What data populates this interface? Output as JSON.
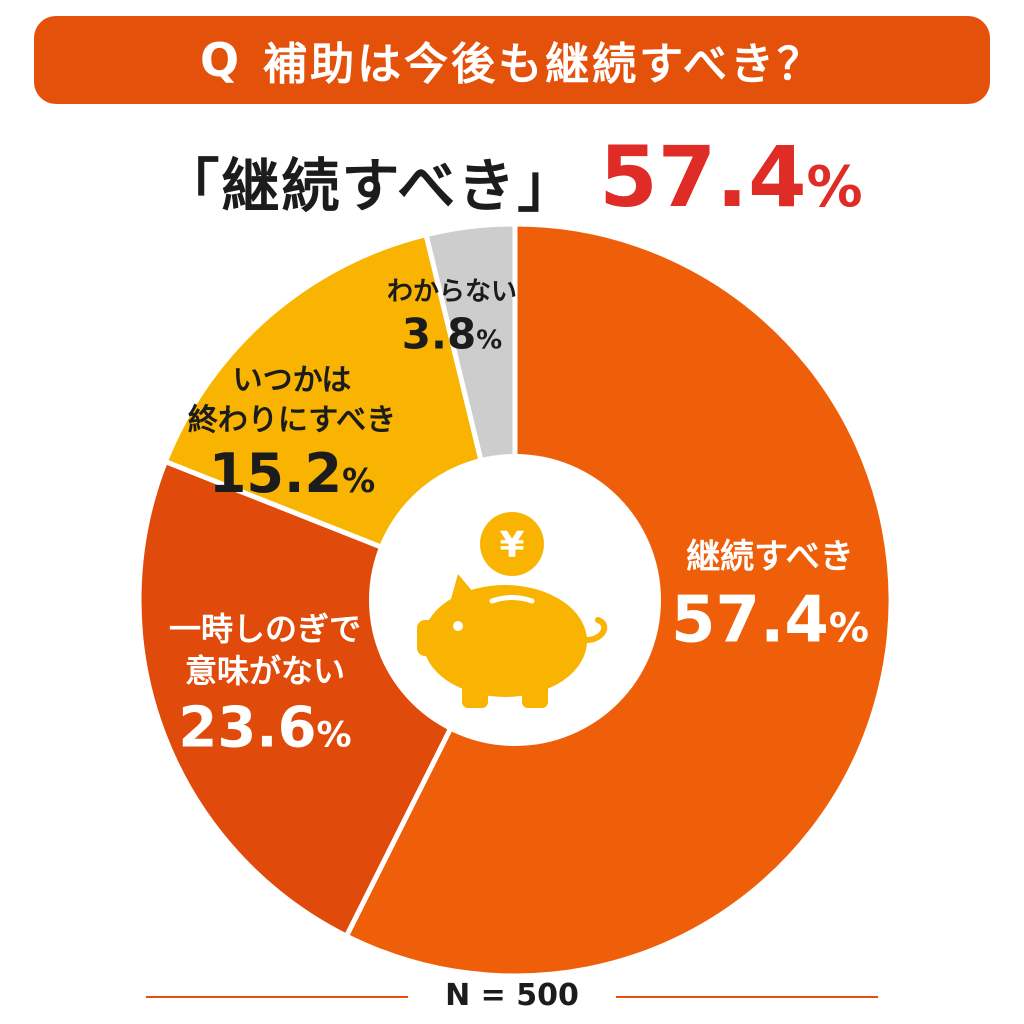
{
  "question": {
    "mark": "Q",
    "text": "補助は今後も継続すべき？"
  },
  "headline": {
    "label": "「継続すべき」",
    "value": "57.4",
    "unit": "%"
  },
  "chart_data": {
    "type": "pie",
    "title": "補助は今後も継続すべき？",
    "center_icon": "piggy-bank-yen-icon",
    "slices": [
      {
        "label": "継続すべき",
        "value": 57.4,
        "display": "57.4",
        "unit": "%",
        "color": "#ef5f0a",
        "text_color": "#ffffff"
      },
      {
        "label": "一時しのぎで 意味がない",
        "value": 23.6,
        "display": "23.6",
        "unit": "%",
        "color": "#e04a0b",
        "text_color": "#ffffff"
      },
      {
        "label": "いつかは 終わりにすべき",
        "value": 15.2,
        "display": "15.2",
        "unit": "%",
        "color": "#f8b400",
        "text_color": "#1c1c1c"
      },
      {
        "label": "わからない",
        "value": 3.8,
        "display": "3.8",
        "unit": "%",
        "color": "#cdcdcd",
        "text_color": "#1c1c1c"
      }
    ]
  },
  "footer": {
    "n_label": "N = 500"
  },
  "colors": {
    "brand": "#e4510b",
    "highlight": "#e02c26",
    "icon": "#f8b400"
  }
}
